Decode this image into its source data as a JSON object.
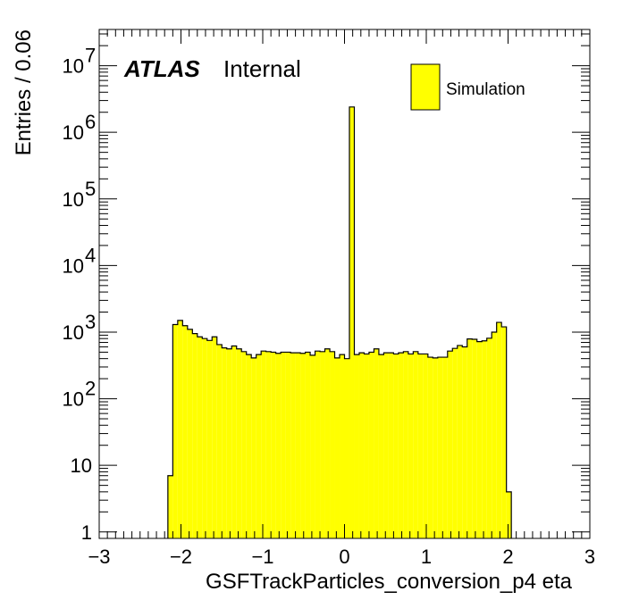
{
  "chart_data": {
    "type": "bar",
    "title": "",
    "xlabel": "GSFTrackParticles_conversion_p4 eta",
    "ylabel": "Entries / 0.06",
    "xlim": [
      -3,
      3
    ],
    "ylim": [
      0.8,
      35000000
    ],
    "y_scale": "log",
    "grid": false,
    "legend_position": "top-right",
    "colors": {
      "fill": "#ffff00",
      "line": "#000000"
    },
    "experiment_label": "ATLAS",
    "status_label": "Internal",
    "legend": [
      "Simulation"
    ],
    "x_tick_labels": [
      "−3",
      "−2",
      "−1",
      "0",
      "1",
      "2",
      "3"
    ],
    "x_ticks": [
      -3,
      -2,
      -1,
      0,
      1,
      2,
      3
    ],
    "y_tick_labels": [
      {
        "value": 1,
        "base": "1",
        "exp": ""
      },
      {
        "value": 10,
        "base": "10",
        "exp": ""
      },
      {
        "value": 100,
        "base": "10",
        "exp": "2"
      },
      {
        "value": 1000,
        "base": "10",
        "exp": "3"
      },
      {
        "value": 10000,
        "base": "10",
        "exp": "4"
      },
      {
        "value": 100000,
        "base": "10",
        "exp": "5"
      },
      {
        "value": 1000000,
        "base": "10",
        "exp": "6"
      },
      {
        "value": 10000000,
        "base": "10",
        "exp": "7"
      }
    ],
    "bin_width": 0.06,
    "bins_start": -2.16,
    "values": [
      7,
      1300,
      1500,
      1250,
      1100,
      950,
      850,
      800,
      750,
      850,
      650,
      580,
      560,
      620,
      560,
      510,
      460,
      410,
      460,
      520,
      510,
      500,
      480,
      500,
      500,
      490,
      490,
      480,
      500,
      450,
      520,
      510,
      560,
      510,
      410,
      460,
      400,
      2400000,
      460,
      490,
      470,
      500,
      560,
      460,
      490,
      490,
      470,
      490,
      510,
      470,
      510,
      470,
      470,
      420,
      410,
      420,
      420,
      520,
      570,
      630,
      600,
      790,
      780,
      720,
      740,
      810,
      1000,
      1400,
      1200,
      4
    ]
  }
}
